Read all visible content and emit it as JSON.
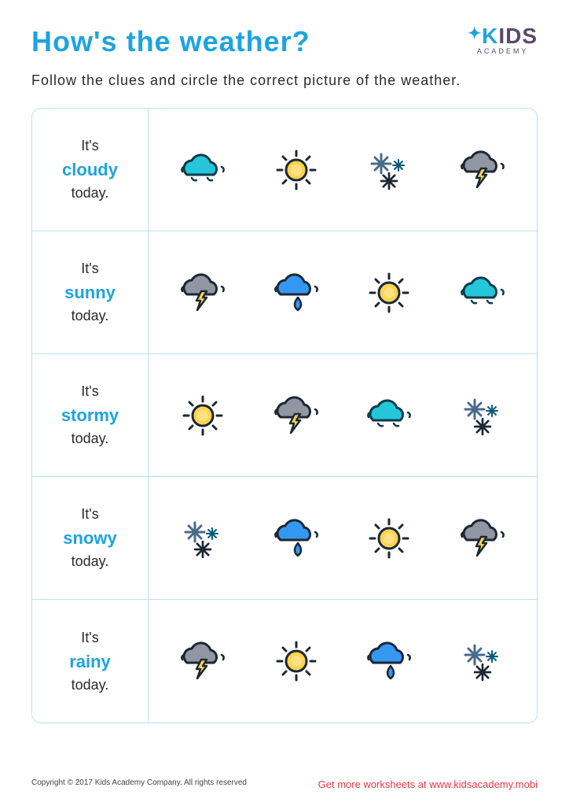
{
  "title": "How's the weather?",
  "logo": {
    "brand_left": "K",
    "brand_rest": "IDS",
    "sub": "ACADEMY"
  },
  "instructions": "Follow the clues and circle the correct picture of the weather.",
  "clue_prefix": "It's",
  "clue_suffix": "today.",
  "rows": [
    {
      "word": "cloudy",
      "icons": [
        "cloud-cyan",
        "sun",
        "snow",
        "storm-gray"
      ]
    },
    {
      "word": "sunny",
      "icons": [
        "storm-gray",
        "rain-blue",
        "sun",
        "cloud-cyan"
      ]
    },
    {
      "word": "stormy",
      "icons": [
        "sun",
        "storm-gray",
        "cloud-cyan",
        "snow"
      ]
    },
    {
      "word": "snowy",
      "icons": [
        "snow",
        "rain-blue",
        "sun",
        "storm-gray"
      ]
    },
    {
      "word": "rainy",
      "icons": [
        "storm-gray",
        "sun",
        "rain-blue",
        "snow"
      ]
    }
  ],
  "colors": {
    "accent": "#1ea3e0",
    "border": "#b8e2f2",
    "text": "#2a2a2a",
    "footer_link": "#e63946",
    "cloud_cyan_fill": "#26c6da",
    "cloud_cyan_stroke": "#0d3b4a",
    "cloud_gray_fill": "#9097a3",
    "cloud_gray_stroke": "#1b2733",
    "cloud_blue_fill": "#3498f3",
    "sun_fill": "#ffd54f",
    "sun_inner": "#ffe082",
    "sun_stroke": "#1b2733",
    "bolt_fill": "#ffd54f",
    "drop_fill": "#3498f3",
    "snow_big": "#4a6a8a",
    "snow_small": "#0d5a7a"
  },
  "footer": {
    "copyright": "Copyright © 2017 Kids Academy Company. All rights reserved",
    "link": "Get more worksheets at www.kidsacademy.mobi"
  }
}
